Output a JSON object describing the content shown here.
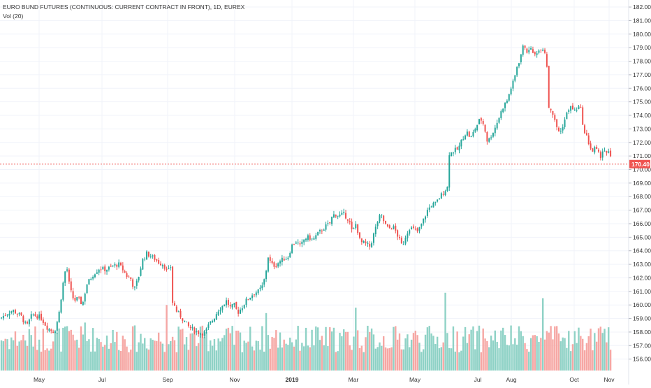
{
  "legend": {
    "title": "EURO BUND FUTURES (CONTINUOUS: CURRENT CONTRACT IN FRONT), 1D, EUREX",
    "volume_label": "Vol (20)"
  },
  "colors": {
    "up": "#26a69a",
    "down": "#ef5350",
    "vol_up": "#8fd2c6",
    "vol_down": "#f6a7a4",
    "grid": "#f0f3fa",
    "price_line": "#ef5350",
    "axis_text": "#333333"
  },
  "price_axis": {
    "ticks": [
      "156.00",
      "157.00",
      "158.00",
      "159.00",
      "160.00",
      "161.00",
      "162.00",
      "163.00",
      "164.00",
      "165.00",
      "166.00",
      "167.00",
      "168.00",
      "169.00",
      "170.00",
      "171.00",
      "172.00",
      "173.00",
      "174.00",
      "175.00",
      "176.00",
      "177.00",
      "178.00",
      "179.00",
      "180.00",
      "181.00",
      "182.00"
    ]
  },
  "time_axis": {
    "labels": [
      "May",
      "Jul",
      "Sep",
      "Nov",
      "2019",
      "Mar",
      "May",
      "Jul",
      "Aug",
      "Oct",
      "Nov"
    ]
  },
  "last_price": {
    "value": 170.4,
    "label": "170.40"
  },
  "chart_data": {
    "type": "candlestick",
    "title": "EURO BUND FUTURES (CONTINUOUS: CURRENT CONTRACT IN FRONT), 1D, EUREX",
    "ylim": [
      155.3,
      182.3
    ],
    "x_ticks": [
      "May",
      "Jul",
      "Sep",
      "Nov",
      "2019",
      "Mar",
      "May",
      "Jul",
      "Aug",
      "Oct",
      "Nov"
    ],
    "close_path": [
      [
        0,
        159.0
      ],
      [
        8,
        159.3
      ],
      [
        18,
        159.6
      ],
      [
        30,
        159.2
      ],
      [
        38,
        158.4
      ],
      [
        46,
        159.3
      ],
      [
        58,
        159.1
      ],
      [
        68,
        158.3
      ],
      [
        78,
        158.0
      ],
      [
        84,
        159.2
      ],
      [
        90,
        161.5
      ],
      [
        95,
        163.0
      ],
      [
        100,
        161.2
      ],
      [
        106,
        160.3
      ],
      [
        112,
        160.5
      ],
      [
        118,
        160.0
      ],
      [
        124,
        161.5
      ],
      [
        134,
        162.3
      ],
      [
        142,
        162.7
      ],
      [
        152,
        162.6
      ],
      [
        162,
        162.9
      ],
      [
        170,
        163.0
      ],
      [
        176,
        162.6
      ],
      [
        182,
        162.1
      ],
      [
        188,
        161.9
      ],
      [
        192,
        161.1
      ],
      [
        198,
        162.0
      ],
      [
        204,
        163.3
      ],
      [
        210,
        163.8
      ],
      [
        216,
        163.6
      ],
      [
        222,
        163.4
      ],
      [
        228,
        163.1
      ],
      [
        234,
        163.0
      ],
      [
        240,
        162.4
      ],
      [
        246,
        163.0
      ],
      [
        248,
        160.2
      ],
      [
        252,
        159.6
      ],
      [
        258,
        159.2
      ],
      [
        264,
        158.8
      ],
      [
        270,
        158.4
      ],
      [
        276,
        158.2
      ],
      [
        282,
        158.0
      ],
      [
        288,
        157.9
      ],
      [
        294,
        158.0
      ],
      [
        300,
        158.6
      ],
      [
        306,
        159.0
      ],
      [
        312,
        159.6
      ],
      [
        318,
        159.9
      ],
      [
        324,
        160.3
      ],
      [
        330,
        159.8
      ],
      [
        336,
        160.0
      ],
      [
        340,
        159.4
      ],
      [
        346,
        159.8
      ],
      [
        352,
        160.3
      ],
      [
        358,
        160.6
      ],
      [
        364,
        160.9
      ],
      [
        370,
        161.0
      ],
      [
        376,
        161.4
      ],
      [
        380,
        162.2
      ],
      [
        384,
        163.6
      ],
      [
        388,
        163.0
      ],
      [
        394,
        162.9
      ],
      [
        400,
        163.2
      ],
      [
        406,
        163.4
      ],
      [
        412,
        163.5
      ],
      [
        418,
        164.4
      ],
      [
        424,
        164.7
      ],
      [
        430,
        164.3
      ],
      [
        436,
        164.9
      ],
      [
        442,
        165.0
      ],
      [
        448,
        164.8
      ],
      [
        454,
        165.2
      ],
      [
        460,
        165.5
      ],
      [
        466,
        165.8
      ],
      [
        472,
        166.0
      ],
      [
        476,
        166.6
      ],
      [
        480,
        166.7
      ],
      [
        486,
        166.6
      ],
      [
        492,
        166.7
      ],
      [
        496,
        166.5
      ],
      [
        500,
        166.2
      ],
      [
        504,
        165.4
      ],
      [
        508,
        165.7
      ],
      [
        510,
        166.1
      ],
      [
        514,
        164.9
      ],
      [
        518,
        164.6
      ],
      [
        524,
        164.5
      ],
      [
        530,
        164.3
      ],
      [
        536,
        165.4
      ],
      [
        542,
        166.4
      ],
      [
        546,
        166.6
      ],
      [
        550,
        166.1
      ],
      [
        556,
        165.6
      ],
      [
        562,
        165.8
      ],
      [
        566,
        165.5
      ],
      [
        572,
        164.8
      ],
      [
        576,
        164.3
      ],
      [
        580,
        165.0
      ],
      [
        586,
        165.7
      ],
      [
        592,
        165.6
      ],
      [
        598,
        165.4
      ],
      [
        604,
        166.0
      ],
      [
        608,
        166.5
      ],
      [
        612,
        167.0
      ],
      [
        618,
        167.4
      ],
      [
        624,
        167.5
      ],
      [
        630,
        168.0
      ],
      [
        636,
        168.4
      ],
      [
        642,
        168.8
      ],
      [
        645,
        171.2
      ],
      [
        650,
        171.4
      ],
      [
        656,
        171.5
      ],
      [
        662,
        172.3
      ],
      [
        668,
        172.8
      ],
      [
        674,
        172.3
      ],
      [
        680,
        173.0
      ],
      [
        686,
        173.6
      ],
      [
        690,
        173.7
      ],
      [
        694,
        173.0
      ],
      [
        698,
        172.0
      ],
      [
        702,
        172.4
      ],
      [
        708,
        173.0
      ],
      [
        714,
        173.8
      ],
      [
        720,
        174.6
      ],
      [
        726,
        175.1
      ],
      [
        732,
        176.1
      ],
      [
        736,
        176.6
      ],
      [
        740,
        177.6
      ],
      [
        744,
        178.1
      ],
      [
        748,
        179.0
      ],
      [
        752,
        179.1
      ],
      [
        756,
        178.5
      ],
      [
        760,
        179.1
      ],
      [
        764,
        178.3
      ],
      [
        768,
        178.7
      ],
      [
        772,
        178.8
      ],
      [
        776,
        179.1
      ],
      [
        780,
        178.7
      ],
      [
        784,
        177.3
      ],
      [
        786,
        174.6
      ],
      [
        790,
        174.4
      ],
      [
        794,
        173.6
      ],
      [
        798,
        173.0
      ],
      [
        802,
        172.7
      ],
      [
        806,
        173.3
      ],
      [
        810,
        173.9
      ],
      [
        814,
        174.5
      ],
      [
        818,
        174.6
      ],
      [
        822,
        174.3
      ],
      [
        828,
        174.6
      ],
      [
        832,
        174.4
      ],
      [
        836,
        172.7
      ],
      [
        840,
        172.4
      ],
      [
        844,
        171.8
      ],
      [
        848,
        171.3
      ],
      [
        852,
        171.6
      ],
      [
        856,
        171.2
      ],
      [
        860,
        171.0
      ],
      [
        864,
        171.6
      ],
      [
        868,
        171.1
      ],
      [
        872,
        171.3
      ],
      [
        876,
        170.4
      ]
    ],
    "gaps_after": [
      246,
      642,
      784
    ],
    "volume": {
      "label": "Vol (20)",
      "scale_max": 160.9,
      "spikes": [
        [
          94,
          158.4
        ],
        [
          122,
          158.7
        ],
        [
          238,
          160.0
        ],
        [
          380,
          159.4
        ],
        [
          508,
          159.8
        ],
        [
          638,
          160.9
        ],
        [
          778,
          160.5
        ]
      ]
    }
  }
}
